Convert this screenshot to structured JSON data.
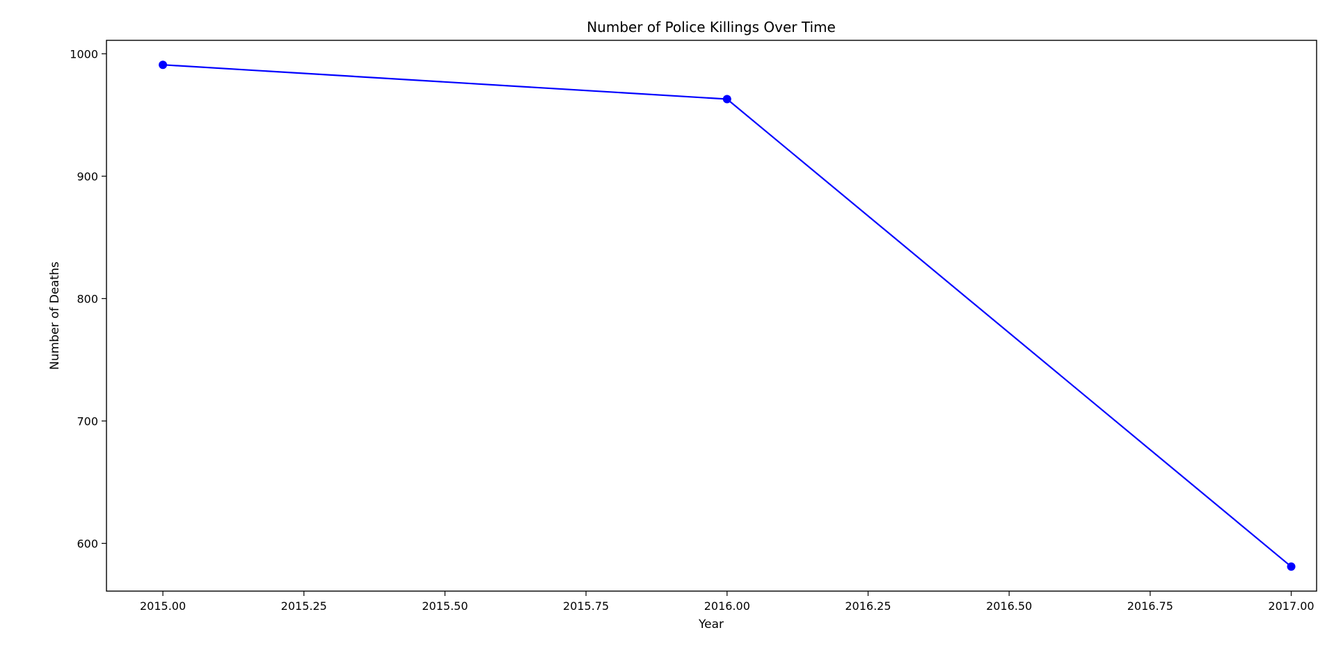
{
  "chart_data": {
    "type": "line",
    "title": "Number of Police Killings Over Time",
    "xlabel": "Year",
    "ylabel": "Number of Deaths",
    "x": [
      2015,
      2016,
      2017
    ],
    "series": [
      {
        "values": [
          991,
          963,
          581
        ],
        "color": "#0000ff",
        "marker": "circle"
      }
    ],
    "xlim": [
      2014.9,
      2017.045
    ],
    "ylim": [
      561,
      1011
    ],
    "xticks": [
      2015.0,
      2015.25,
      2015.5,
      2015.75,
      2016.0,
      2016.25,
      2016.5,
      2016.75,
      2017.0
    ],
    "xtick_labels": [
      "2015.00",
      "2015.25",
      "2015.50",
      "2015.75",
      "2016.00",
      "2016.25",
      "2016.50",
      "2016.75",
      "2017.00"
    ],
    "yticks": [
      600,
      700,
      800,
      900,
      1000
    ],
    "ytick_labels": [
      "600",
      "700",
      "800",
      "900",
      "1000"
    ],
    "grid": false,
    "legend": "none"
  }
}
